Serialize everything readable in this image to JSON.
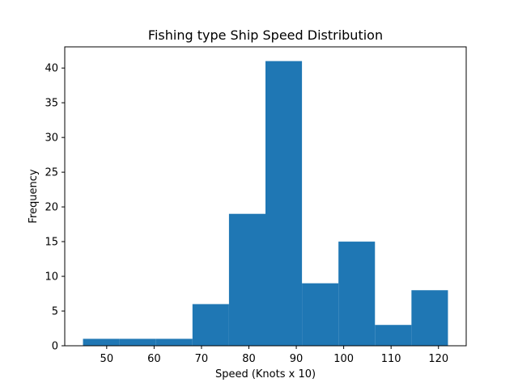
{
  "chart_data": {
    "type": "bar",
    "title": "Fishing type Ship Speed Distribution",
    "xlabel": "Speed (Knots x 10)",
    "ylabel": "Frequency",
    "bins": [
      {
        "start": 45.0,
        "end": 52.7,
        "count": 1
      },
      {
        "start": 52.7,
        "end": 60.4,
        "count": 1
      },
      {
        "start": 60.4,
        "end": 68.1,
        "count": 1
      },
      {
        "start": 68.1,
        "end": 75.8,
        "count": 6
      },
      {
        "start": 75.8,
        "end": 83.5,
        "count": 19
      },
      {
        "start": 83.5,
        "end": 91.2,
        "count": 41
      },
      {
        "start": 91.2,
        "end": 98.9,
        "count": 9
      },
      {
        "start": 98.9,
        "end": 106.6,
        "count": 15
      },
      {
        "start": 106.6,
        "end": 114.3,
        "count": 3
      },
      {
        "start": 114.3,
        "end": 122.0,
        "count": 8
      }
    ],
    "xlim": [
      41.15,
      125.85
    ],
    "ylim": [
      0,
      43.05
    ],
    "xticks": [
      50,
      60,
      70,
      80,
      90,
      100,
      110,
      120
    ],
    "yticks": [
      0,
      5,
      10,
      15,
      20,
      25,
      30,
      35,
      40
    ],
    "grid": false,
    "bar_color": "#1f77b4"
  }
}
